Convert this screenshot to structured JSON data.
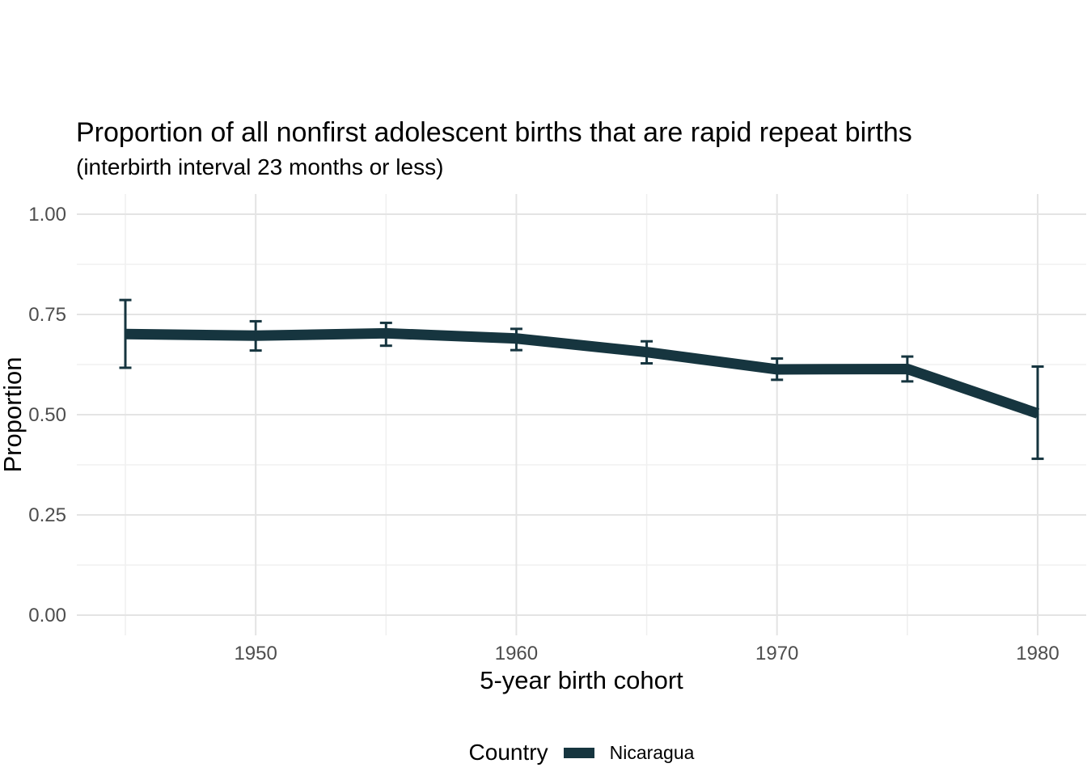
{
  "page": {
    "background": "#FFFFFF"
  },
  "chart_data": {
    "type": "line",
    "title": "Proportion of all nonfirst adolescent births that are rapid repeat births",
    "subtitle": "(interbirth interval 23 months or less)",
    "xlabel": "5-year birth cohort",
    "ylabel": "Proportion",
    "legend_title": "Country",
    "legend_position": "bottom",
    "grid": true,
    "x": [
      1945,
      1950,
      1955,
      1960,
      1965,
      1970,
      1975,
      1980
    ],
    "series": [
      {
        "name": "Nicaragua",
        "color": "#16353F",
        "values": [
          0.701,
          0.697,
          0.703,
          0.69,
          0.656,
          0.613,
          0.614,
          0.503
        ],
        "ci_lower": [
          0.617,
          0.66,
          0.672,
          0.661,
          0.628,
          0.587,
          0.583,
          0.39
        ],
        "ci_upper": [
          0.786,
          0.733,
          0.729,
          0.714,
          0.683,
          0.64,
          0.645,
          0.62
        ]
      }
    ],
    "x_ticks": {
      "values": [
        1950,
        1960,
        1970,
        1980
      ],
      "labels": [
        "1950",
        "1960",
        "1970",
        "1980"
      ]
    },
    "x_minor_ticks": [
      1945,
      1955,
      1965,
      1975
    ],
    "y_ticks": {
      "values": [
        0,
        0.25,
        0.5,
        0.75,
        1
      ],
      "labels": [
        "0.00",
        "0.25",
        "0.50",
        "0.75",
        "1.00"
      ]
    },
    "y_minor_ticks": [
      0.125,
      0.375,
      0.625,
      0.875
    ],
    "xlim": [
      1945,
      1980
    ],
    "ylim": [
      0,
      1
    ]
  }
}
